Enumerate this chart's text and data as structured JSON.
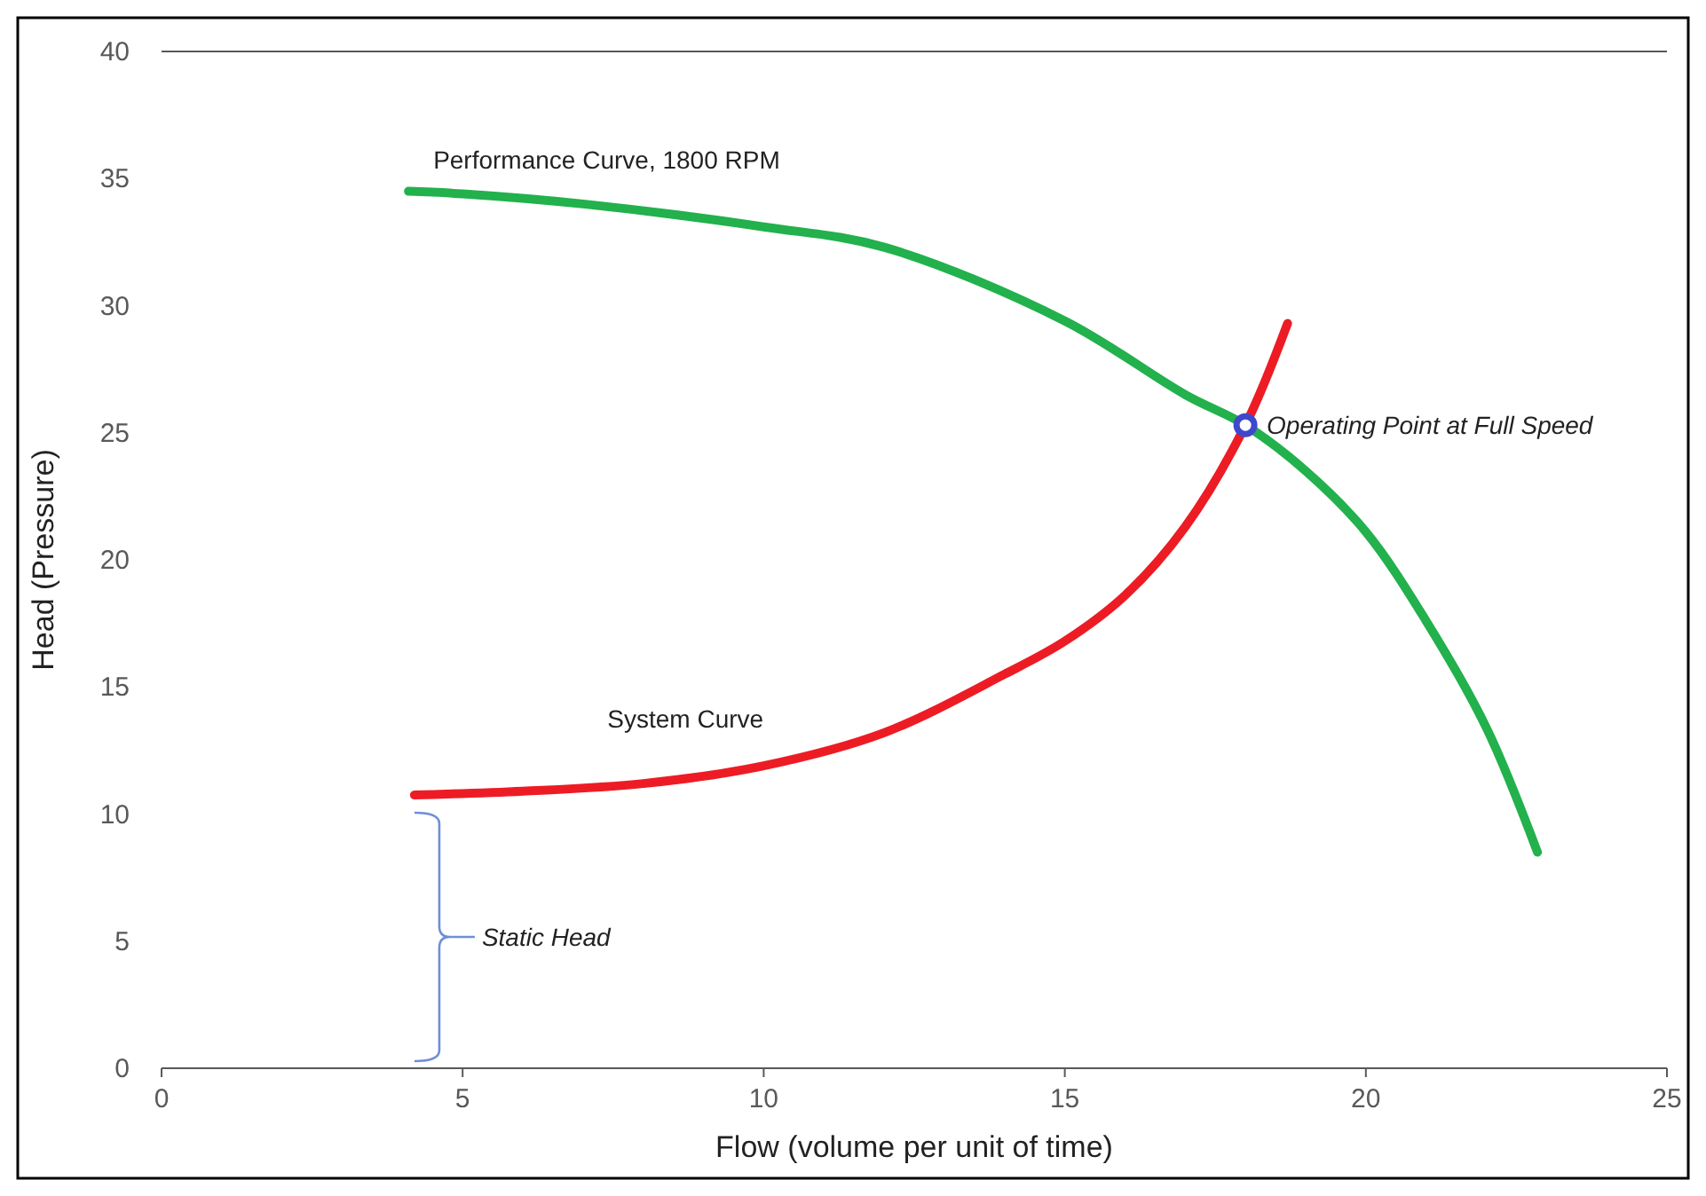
{
  "chart_data": {
    "type": "line",
    "xlabel": "Flow (volume per unit of time)",
    "ylabel": "Head (Pressure)",
    "xlim": [
      0,
      25
    ],
    "xticks": [
      0,
      5,
      10,
      15,
      20,
      25
    ],
    "ylim": [
      0,
      40
    ],
    "yticks": [
      0,
      5,
      10,
      15,
      20,
      25,
      30,
      35,
      40
    ],
    "grid": false,
    "series": [
      {
        "name": "Performance Curve, 1800 RPM",
        "color": "#22b14c",
        "x": [
          4.1,
          5,
          7,
          10,
          12,
          15,
          17,
          18,
          19,
          20,
          21,
          22,
          22.85
        ],
        "values": [
          34.5,
          34.4,
          34,
          33.1,
          32.3,
          29.4,
          26.5,
          25.3,
          23.5,
          21.1,
          17.6,
          13.4,
          8.5
        ]
      },
      {
        "name": "System Curve",
        "color": "#ed1c24",
        "x": [
          4.2,
          6,
          8,
          10,
          12,
          14,
          15,
          16,
          17,
          18,
          18.7
        ],
        "values": [
          10.75,
          10.9,
          11.2,
          11.9,
          13.2,
          15.5,
          16.8,
          18.6,
          21.3,
          25.3,
          29.3
        ]
      },
      {
        "type": "scatter",
        "color": "#3f48cc",
        "marker": "circle",
        "x": [
          18
        ],
        "values": [
          25.3
        ]
      }
    ],
    "annotations": [
      {
        "text": "Operating Point at Full Speed",
        "x": 18,
        "y": 25.3
      },
      "Static Head"
    ]
  }
}
